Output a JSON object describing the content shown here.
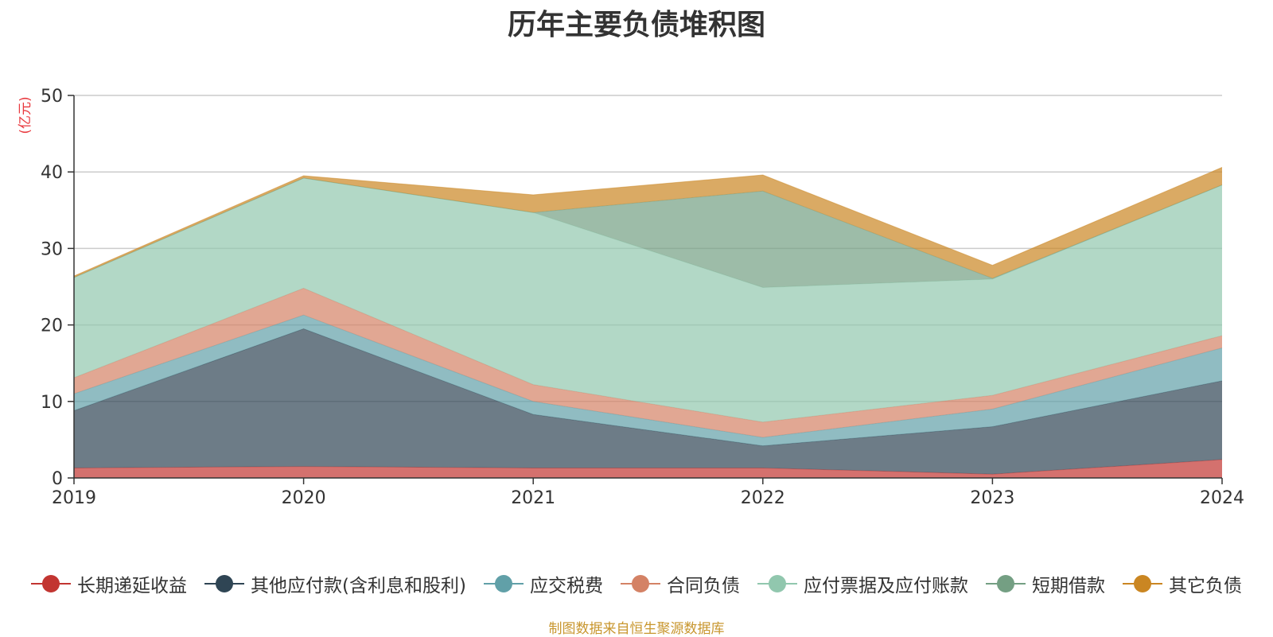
{
  "title": "历年主要负债堆积图",
  "source_note": "制图数据来自恒生聚源数据库",
  "colors": {
    "title": "#333333",
    "ylabel": "#e8383d",
    "source": "#c8962e",
    "grid": "#cccccc",
    "axis": "#333333"
  },
  "chart_data": {
    "type": "area",
    "stacked": true,
    "title": "历年主要负债堆积图",
    "ylabel": "(亿元)",
    "xlabel": "",
    "x": [
      "2019",
      "2020",
      "2021",
      "2022",
      "2023",
      "2024"
    ],
    "ylim": [
      0,
      50
    ],
    "yticks": [
      0,
      10,
      20,
      30,
      40,
      50
    ],
    "grid": true,
    "legend_position": "bottom",
    "series": [
      {
        "name": "长期递延收益",
        "color": "#c23531",
        "values": [
          1.3,
          1.5,
          1.3,
          1.3,
          0.5,
          2.4
        ]
      },
      {
        "name": "其他应付款(含利息和股利)",
        "color": "#2f4554",
        "values": [
          7.5,
          18.0,
          7.0,
          2.9,
          6.2,
          10.3
        ]
      },
      {
        "name": "应交税费",
        "color": "#61a0a8",
        "values": [
          2.2,
          1.8,
          1.7,
          1.1,
          2.3,
          4.3
        ]
      },
      {
        "name": "合同负债",
        "color": "#d48265",
        "values": [
          2.1,
          3.5,
          2.2,
          2.0,
          1.8,
          1.6
        ]
      },
      {
        "name": "应付票据及应付账款",
        "color": "#91c7ae",
        "values": [
          13.1,
          14.4,
          22.5,
          17.6,
          15.2,
          19.7
        ]
      },
      {
        "name": "短期借款",
        "color": "#749f83",
        "values": [
          0.0,
          0.0,
          0.0,
          12.6,
          0.1,
          0.0
        ]
      },
      {
        "name": "其它负债",
        "color": "#ca8622",
        "values": [
          0.2,
          0.3,
          2.3,
          2.1,
          1.7,
          2.3
        ]
      }
    ]
  }
}
